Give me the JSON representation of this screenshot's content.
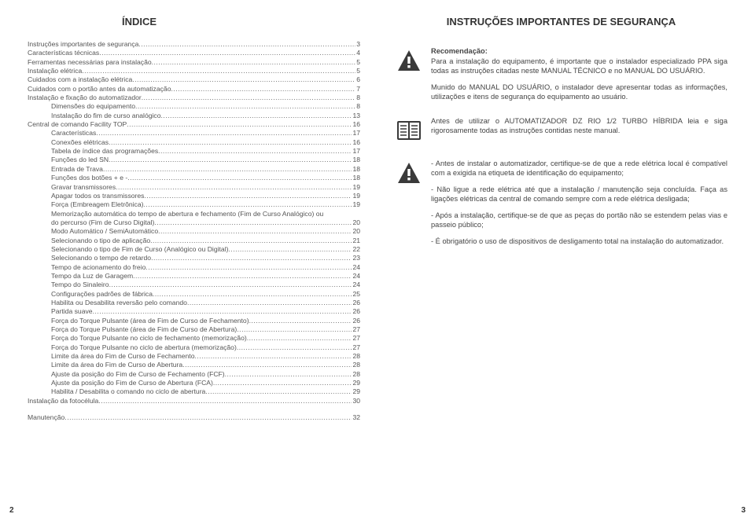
{
  "left": {
    "title": "ÍNDICE",
    "pageNumber": "2",
    "toc": [
      {
        "label": "Instruções importantes de segurança",
        "page": "3",
        "indent": 0
      },
      {
        "label": "Características técnicas",
        "page": "4",
        "indent": 0
      },
      {
        "label": "Ferramentas necessárias para instalação",
        "page": "5",
        "indent": 0
      },
      {
        "label": "Instalação elétrica",
        "page": "5",
        "indent": 0
      },
      {
        "label": "Cuidados com a instalação elétrica",
        "page": "6",
        "indent": 0
      },
      {
        "label": "Cuidados com o portão antes da automatização",
        "page": "7",
        "indent": 0
      },
      {
        "label": "Instalação e fixação do automatizador",
        "page": "8",
        "indent": 0
      },
      {
        "label": "Dimensões do equipamento",
        "page": "8",
        "indent": 1
      },
      {
        "label": "Instalação do fim de curso analógico",
        "page": "13",
        "indent": 1
      },
      {
        "label": "Central de comando Facility TOP",
        "page": "16",
        "indent": 0
      },
      {
        "label": "Características",
        "page": "17",
        "indent": 1
      },
      {
        "label": "Conexões elétricas",
        "page": "16",
        "indent": 1
      },
      {
        "label": "Tabela de índice das programações",
        "page": "17",
        "indent": 1
      },
      {
        "label": "Funções do led SN",
        "page": "18",
        "indent": 1
      },
      {
        "label": "Entrada de Trava",
        "page": "18",
        "indent": 1
      },
      {
        "label": "Funções dos botões + e -",
        "page": "18",
        "indent": 1
      },
      {
        "label": "Gravar transmissores",
        "page": "19",
        "indent": 1
      },
      {
        "label": "Apagar todos os transmissores",
        "page": "19",
        "indent": 1
      },
      {
        "label": "Força (Embreagem Eletrônica)",
        "page": "19",
        "indent": 1
      },
      {
        "label": "Memorização automática do tempo de abertura e fechamento (Fim de Curso Analógico) ou do percurso (Fim de Curso Digital)",
        "page": "20",
        "indent": 1,
        "wrap": true
      },
      {
        "label": "Modo Automático / SemiAutomático",
        "page": "20",
        "indent": 1
      },
      {
        "label": "Selecionando o tipo de aplicação",
        "page": "21",
        "indent": 1
      },
      {
        "label": "Selecionando o tipo de Fim de Curso (Analógico ou Digital)",
        "page": "22",
        "indent": 1
      },
      {
        "label": "Selecionando o tempo de retardo",
        "page": "23",
        "indent": 1
      },
      {
        "label": "Tempo de acionamento do freio",
        "page": "24",
        "indent": 1
      },
      {
        "label": "Tempo da Luz de Garagem",
        "page": "24",
        "indent": 1
      },
      {
        "label": "Tempo do Sinaleiro",
        "page": "24",
        "indent": 1
      },
      {
        "label": "Configurações padrões de fábrica",
        "page": "25",
        "indent": 1
      },
      {
        "label": "Habilita ou Desabilita reversão pelo comando",
        "page": "26",
        "indent": 1
      },
      {
        "label": "Partida suave",
        "page": "26",
        "indent": 1
      },
      {
        "label": "Força do Torque Pulsante (área de Fim de Curso de Fechamento)",
        "page": "26",
        "indent": 1
      },
      {
        "label": "Força do Torque Pulsante (área de Fim de Curso de Abertura)",
        "page": "27",
        "indent": 1
      },
      {
        "label": "Força do Torque Pulsante no ciclo de fechamento (memorização)",
        "page": "27",
        "indent": 1
      },
      {
        "label": "Força do Torque Pulsante no ciclo de abertura (memorização)",
        "page": "27",
        "indent": 1
      },
      {
        "label": "Limite da área do Fim de Curso de Fechamento",
        "page": "28",
        "indent": 1
      },
      {
        "label": "Limite da área do Fim de Curso de Abertura",
        "page": "28",
        "indent": 1
      },
      {
        "label": "Ajuste da posição do Fim de Curso de Fechamento (FCF)",
        "page": "28",
        "indent": 1
      },
      {
        "label": "Ajuste da posição do Fim de Curso de Abertura (FCA)",
        "page": "29",
        "indent": 1
      },
      {
        "label": "Habilita / Desabilita o comando no ciclo de abertura",
        "page": "29",
        "indent": 1
      },
      {
        "label": "Instalação da fotocélula",
        "page": "30",
        "indent": 0
      },
      {
        "label": "",
        "page": "",
        "indent": 0,
        "blank": true
      },
      {
        "label": "Manutenção",
        "page": "32",
        "indent": 0
      }
    ]
  },
  "right": {
    "title": "INSTRUÇÕES IMPORTANTES DE SEGURANÇA",
    "pageNumber": "3",
    "blocks": [
      {
        "icon": "warning",
        "paragraphs": [
          {
            "bold": "Recomendação:",
            "text": "Para a instalação do equipamento, é importante que o instalador especializado PPA siga todas as instruções citadas neste MANUAL TÉCNICO e no MANUAL DO USUÁRIO."
          },
          {
            "text": "Munido do MANUAL DO USUÁRIO, o instalador deve apresentar todas as informações, utilizações e itens de segurança do equipamento ao usuário."
          }
        ]
      },
      {
        "icon": "book",
        "paragraphs": [
          {
            "text": "Antes de utilizar o AUTOMATIZADOR DZ RIO 1/2 TURBO HÍBRIDA leia e siga rigorosamente todas as instruções contidas neste manual."
          }
        ]
      },
      {
        "icon": "warning",
        "paragraphs": [
          {
            "text": "- Antes de instalar o automatizador, certifique-se de que a rede elétrica local é compatível com a exigida na etiqueta de identificação do equipamento;"
          },
          {
            "text": "- Não ligue a rede elétrica até que a instalação / manutenção seja concluída. Faça as ligações elétricas da central de comando sempre com a rede elétrica desligada;"
          },
          {
            "text": "- Após a instalação, certifique-se de que as peças do portão não se estendem pelas vias e passeio público;"
          },
          {
            "text": "- É obrigatório o uso de dispositivos de desligamento total na instalação do automatizador."
          }
        ]
      }
    ]
  },
  "icons": {
    "warning_fill": "#3a3a3a",
    "book_stroke": "#3a3a3a"
  }
}
